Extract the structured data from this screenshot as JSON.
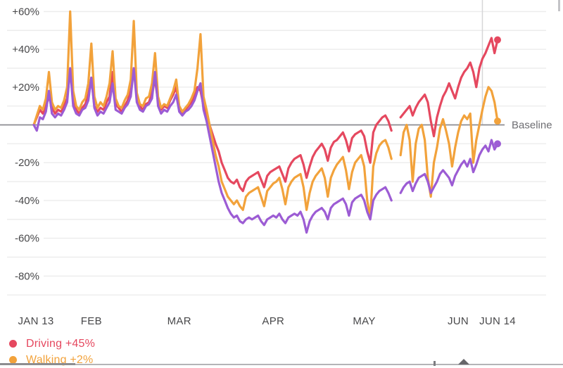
{
  "page": {
    "background": "#ffffff"
  },
  "colors": {
    "grid": "#ececec",
    "baseline_line": "#8b8b90",
    "axis_label": "#48484a",
    "baseline_label": "#6d6d72",
    "marker_line": "#d6d6d8",
    "driving": "#e5485f",
    "walking": "#f2a23b",
    "purple_series": "#9c5cd4"
  },
  "legend": {
    "items": [
      {
        "id": "driving",
        "label": "Driving +45%",
        "color": "#e5485f"
      },
      {
        "id": "walking",
        "label": "Walking +2%",
        "color": "#f2a23b"
      }
    ]
  },
  "chart_data": {
    "type": "line",
    "title": "",
    "x_axis": {
      "ticks": [
        {
          "label": "JAN 13",
          "day": 0
        },
        {
          "label": "FEB",
          "day": 19
        },
        {
          "label": "MAR",
          "day": 48
        },
        {
          "label": "APR",
          "day": 79
        },
        {
          "label": "MAY",
          "day": 109
        },
        {
          "label": "JUN",
          "day": 140
        },
        {
          "label": "JUN 14",
          "day": 153
        }
      ]
    },
    "y_axis": {
      "min": -90,
      "max": 60,
      "grid_step": 10,
      "unit": "%",
      "ticks": [
        {
          "value": 60,
          "label": "+60%"
        },
        {
          "value": 40,
          "label": "+40%"
        },
        {
          "value": 20,
          "label": "+20%"
        },
        {
          "value": -20,
          "label": "-20%"
        },
        {
          "value": -40,
          "label": "-40%"
        },
        {
          "value": -60,
          "label": "-60%"
        },
        {
          "value": -80,
          "label": "-80%"
        }
      ]
    },
    "baseline": {
      "value": 0,
      "label": "Baseline"
    },
    "marker_line": {
      "day": 148
    },
    "days_total": 154,
    "data_gap_days": [
      119,
      120
    ],
    "legend_position": "bottom-left",
    "grid": true,
    "series": [
      {
        "id": "driving",
        "name": "Driving",
        "end_label": "+45%",
        "color": "#e5485f",
        "values": [
          0,
          4,
          8,
          6,
          10,
          15,
          9,
          6,
          8,
          7,
          10,
          14,
          30,
          12,
          8,
          6,
          9,
          11,
          16,
          25,
          10,
          7,
          9,
          8,
          12,
          15,
          28,
          11,
          9,
          7,
          10,
          13,
          18,
          30,
          14,
          10,
          8,
          11,
          12,
          17,
          24,
          12,
          8,
          10,
          9,
          13,
          16,
          20,
          8,
          6,
          8,
          10,
          12,
          15,
          20,
          18,
          10,
          5,
          0,
          -5,
          -10,
          -14,
          -20,
          -24,
          -28,
          -30,
          -31,
          -29,
          -33,
          -35,
          -30,
          -28,
          -27,
          -26,
          -25,
          -29,
          -33,
          -27,
          -25,
          -24,
          -23,
          -22,
          -26,
          -30,
          -23,
          -20,
          -18,
          -17,
          -16,
          -21,
          -28,
          -22,
          -17,
          -14,
          -12,
          -10,
          -13,
          -19,
          -12,
          -9,
          -8,
          -6,
          -4,
          -8,
          -14,
          -7,
          -5,
          -4,
          -3,
          -6,
          -14,
          -20,
          -4,
          0,
          2,
          4,
          5,
          2,
          -3,
          null,
          null,
          4,
          6,
          8,
          10,
          5,
          9,
          12,
          14,
          16,
          12,
          2,
          -6,
          4,
          10,
          15,
          18,
          22,
          18,
          14,
          20,
          25,
          28,
          30,
          33,
          28,
          20,
          30,
          35,
          38,
          42,
          46,
          38,
          45
        ]
      },
      {
        "id": "walking",
        "name": "Walking",
        "end_label": "+2%",
        "color": "#f2a23b",
        "values": [
          0,
          5,
          10,
          8,
          14,
          28,
          12,
          8,
          10,
          9,
          13,
          20,
          60,
          18,
          10,
          8,
          12,
          14,
          22,
          43,
          15,
          9,
          12,
          10,
          15,
          22,
          39,
          14,
          10,
          9,
          13,
          16,
          24,
          55,
          17,
          11,
          10,
          14,
          15,
          22,
          38,
          15,
          9,
          11,
          10,
          14,
          18,
          24,
          10,
          7,
          9,
          11,
          14,
          18,
          30,
          48,
          15,
          8,
          0,
          -8,
          -16,
          -22,
          -30,
          -34,
          -38,
          -40,
          -42,
          -40,
          -43,
          -45,
          -38,
          -36,
          -35,
          -34,
          -33,
          -38,
          -43,
          -35,
          -33,
          -31,
          -30,
          -28,
          -34,
          -42,
          -33,
          -30,
          -28,
          -27,
          -26,
          -33,
          -45,
          -36,
          -30,
          -27,
          -25,
          -23,
          -28,
          -38,
          -28,
          -24,
          -21,
          -19,
          -17,
          -24,
          -34,
          -25,
          -20,
          -18,
          -16,
          -22,
          -40,
          -49,
          -22,
          -15,
          -11,
          -9,
          -8,
          -12,
          -18,
          null,
          null,
          -16,
          -4,
          0,
          -8,
          -30,
          -10,
          -2,
          0,
          -8,
          -28,
          -38,
          -20,
          -12,
          -2,
          3,
          -3,
          -10,
          -22,
          -12,
          -4,
          2,
          5,
          3,
          6,
          -20,
          -8,
          0,
          8,
          15,
          20,
          18,
          12,
          2
        ]
      },
      {
        "id": "purple-series",
        "name": "",
        "end_label": "",
        "color": "#9c5cd4",
        "values": [
          0,
          -3,
          4,
          3,
          7,
          18,
          6,
          4,
          6,
          5,
          8,
          12,
          30,
          10,
          6,
          5,
          8,
          9,
          13,
          25,
          9,
          5,
          7,
          6,
          9,
          12,
          22,
          8,
          7,
          6,
          9,
          11,
          15,
          30,
          12,
          8,
          7,
          10,
          11,
          14,
          28,
          10,
          6,
          8,
          7,
          10,
          12,
          16,
          7,
          5,
          7,
          8,
          10,
          13,
          18,
          22,
          8,
          2,
          -6,
          -14,
          -22,
          -30,
          -36,
          -40,
          -44,
          -47,
          -49,
          -48,
          -51,
          -52,
          -50,
          -49,
          -50,
          -49,
          -48,
          -51,
          -53,
          -50,
          -49,
          -48,
          -49,
          -47,
          -50,
          -52,
          -49,
          -48,
          -47,
          -48,
          -46,
          -50,
          -57,
          -51,
          -48,
          -46,
          -45,
          -44,
          -46,
          -50,
          -44,
          -42,
          -41,
          -40,
          -39,
          -42,
          -48,
          -41,
          -39,
          -38,
          -37,
          -40,
          -46,
          -50,
          -40,
          -37,
          -35,
          -34,
          -33,
          -36,
          -40,
          null,
          null,
          -36,
          -33,
          -31,
          -30,
          -35,
          -31,
          -28,
          -27,
          -26,
          -30,
          -36,
          -33,
          -30,
          -26,
          -24,
          -26,
          -28,
          -32,
          -27,
          -24,
          -21,
          -19,
          -22,
          -18,
          -25,
          -21,
          -16,
          -13,
          -11,
          -14,
          -8,
          -13,
          -10
        ]
      }
    ]
  }
}
